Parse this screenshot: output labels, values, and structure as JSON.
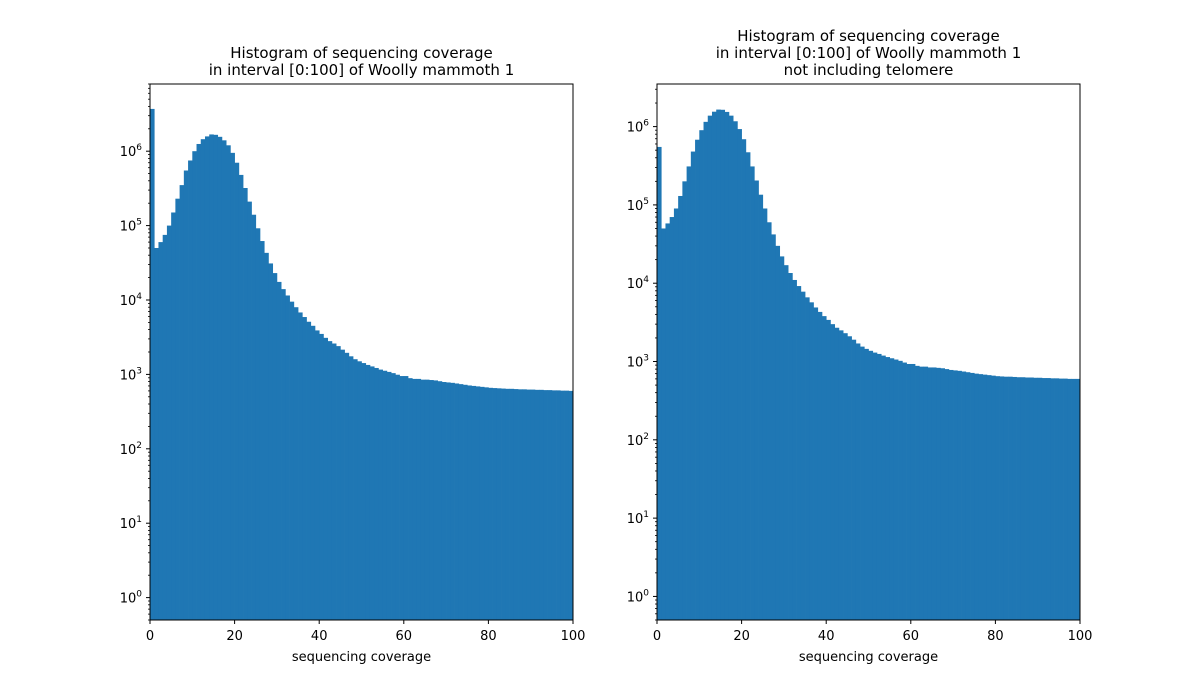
{
  "chart_data": [
    {
      "type": "bar",
      "title": [
        "Histogram of sequencing coverage",
        "in interval [0:100] of Woolly mammoth 1"
      ],
      "xlabel": "sequencing coverage",
      "ylabel": "",
      "xlim": [
        0,
        100
      ],
      "ylim": [
        0.5,
        8000000
      ],
      "yscale": "log",
      "xticks": [
        0,
        20,
        40,
        60,
        80,
        100
      ],
      "xtick_labels": [
        "0",
        "20",
        "40",
        "60",
        "80",
        "100"
      ],
      "yticks": [
        1,
        10,
        100,
        1000,
        10000,
        100000,
        1000000
      ],
      "ytick_labels": [
        "10^0",
        "10^1",
        "10^2",
        "10^3",
        "10^4",
        "10^5",
        "10^6"
      ],
      "bin_width": 1,
      "bin_start": 0,
      "values": [
        3700000,
        50000,
        60000,
        75000,
        100000,
        150000,
        230000,
        350000,
        550000,
        750000,
        1000000,
        1250000,
        1450000,
        1580000,
        1680000,
        1660000,
        1560000,
        1400000,
        1200000,
        950000,
        700000,
        480000,
        320000,
        210000,
        140000,
        92000,
        62000,
        43000,
        31000,
        23000,
        17500,
        14000,
        11500,
        9500,
        8000,
        6800,
        5900,
        5100,
        4500,
        3900,
        3500,
        3100,
        2800,
        2600,
        2400,
        2150,
        1950,
        1750,
        1600,
        1500,
        1420,
        1340,
        1280,
        1220,
        1160,
        1120,
        1080,
        1040,
        990,
        950,
        950,
        890,
        870,
        870,
        850,
        850,
        840,
        830,
        810,
        790,
        780,
        770,
        755,
        740,
        725,
        710,
        700,
        690,
        680,
        670,
        660,
        655,
        650,
        645,
        640,
        640,
        635,
        630,
        630,
        625,
        625,
        620,
        620,
        615,
        615,
        610,
        610,
        605,
        605,
        600
      ],
      "grid": false,
      "color": "#1f77b4"
    },
    {
      "type": "bar",
      "title": [
        "Histogram of sequencing coverage",
        "in interval [0:100] of Woolly mammoth 1",
        "not including telomere"
      ],
      "xlabel": "sequencing coverage",
      "ylabel": "",
      "xlim": [
        0,
        100
      ],
      "ylim": [
        0.5,
        3500000
      ],
      "yscale": "log",
      "xticks": [
        0,
        20,
        40,
        60,
        80,
        100
      ],
      "xtick_labels": [
        "0",
        "20",
        "40",
        "60",
        "80",
        "100"
      ],
      "yticks": [
        1,
        10,
        100,
        1000,
        10000,
        100000,
        1000000
      ],
      "ytick_labels": [
        "10^0",
        "10^1",
        "10^2",
        "10^3",
        "10^4",
        "10^5",
        "10^6"
      ],
      "bin_width": 1,
      "bin_start": 0,
      "values": [
        550000,
        50000,
        58000,
        70000,
        90000,
        130000,
        200000,
        310000,
        480000,
        680000,
        900000,
        1150000,
        1380000,
        1550000,
        1650000,
        1640000,
        1540000,
        1380000,
        1170000,
        930000,
        690000,
        470000,
        310000,
        205000,
        135000,
        90000,
        60000,
        42000,
        30000,
        22000,
        17000,
        13500,
        11000,
        9200,
        7800,
        6600,
        5700,
        4900,
        4300,
        3800,
        3400,
        3000,
        2700,
        2500,
        2300,
        2100,
        1900,
        1700,
        1550,
        1450,
        1370,
        1300,
        1250,
        1190,
        1140,
        1100,
        1060,
        1020,
        970,
        930,
        930,
        880,
        860,
        860,
        840,
        840,
        830,
        820,
        800,
        780,
        770,
        760,
        745,
        730,
        715,
        700,
        690,
        680,
        670,
        660,
        650,
        645,
        640,
        640,
        635,
        630,
        630,
        625,
        625,
        620,
        620,
        615,
        615,
        610,
        610,
        605,
        605,
        600,
        600,
        600
      ],
      "grid": false,
      "color": "#1f77b4"
    }
  ]
}
